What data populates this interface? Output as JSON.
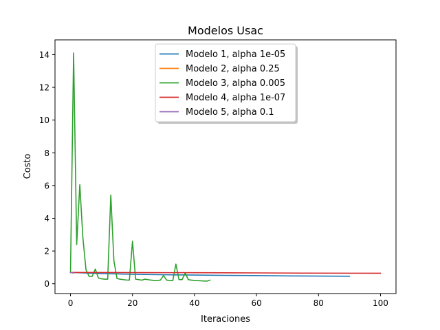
{
  "chart_data": {
    "type": "line",
    "title": "Modelos Usac",
    "xlabel": "Iteraciones",
    "ylabel": "Costo",
    "xlim": [
      -5,
      105
    ],
    "ylim": [
      -0.6,
      14.9
    ],
    "x_ticks": [
      0,
      20,
      40,
      60,
      80,
      100
    ],
    "y_ticks": [
      0,
      2,
      4,
      6,
      8,
      10,
      12,
      14
    ],
    "x_tick_labels": [
      "0",
      "20",
      "40",
      "60",
      "80",
      "100"
    ],
    "y_tick_labels": [
      "0",
      "2",
      "4",
      "6",
      "8",
      "10",
      "12",
      "14"
    ],
    "grid": false,
    "legend_position": "top-center",
    "series": [
      {
        "name": "Modelo 1, alpha 1e-05",
        "color": "#1f77b4",
        "x": [
          0,
          10,
          20,
          30,
          40,
          50,
          60,
          70,
          80,
          90
        ],
        "y": [
          0.69,
          0.62,
          0.58,
          0.55,
          0.53,
          0.51,
          0.5,
          0.48,
          0.47,
          0.46
        ]
      },
      {
        "name": "Modelo 2, alpha 0.25",
        "color": "#ff7f0e",
        "x": [
          0,
          1
        ],
        "y": [
          0.69,
          0.65
        ]
      },
      {
        "name": "Modelo 3, alpha 0.005",
        "color": "#2ca02c",
        "x": [
          0,
          1,
          2,
          3,
          4,
          5,
          6,
          7,
          8,
          9,
          10,
          11,
          12,
          13,
          14,
          15,
          16,
          17,
          18,
          19,
          20,
          21,
          22,
          23,
          24,
          25,
          26,
          27,
          28,
          29,
          30,
          31,
          32,
          33,
          34,
          35,
          36,
          37,
          38,
          39,
          40,
          41,
          42,
          43,
          44,
          45
        ],
        "y": [
          0.69,
          14.1,
          2.4,
          6.05,
          2.8,
          0.85,
          0.45,
          0.45,
          0.9,
          0.35,
          0.3,
          0.28,
          0.28,
          5.42,
          1.4,
          0.32,
          0.28,
          0.25,
          0.23,
          0.22,
          2.6,
          0.28,
          0.25,
          0.22,
          0.28,
          0.25,
          0.22,
          0.2,
          0.2,
          0.22,
          0.5,
          0.22,
          0.2,
          0.19,
          1.2,
          0.25,
          0.25,
          0.65,
          0.25,
          0.22,
          0.2,
          0.19,
          0.18,
          0.17,
          0.16,
          0.22
        ]
      },
      {
        "name": "Modelo 4, alpha 1e-07",
        "color": "#d62728",
        "x": [
          0,
          25,
          50,
          75,
          100
        ],
        "y": [
          0.69,
          0.68,
          0.67,
          0.65,
          0.64
        ]
      },
      {
        "name": "Modelo 5, alpha 0.1",
        "color": "#9467bd",
        "x": [
          0,
          1
        ],
        "y": [
          0.69,
          0.66
        ]
      }
    ]
  }
}
